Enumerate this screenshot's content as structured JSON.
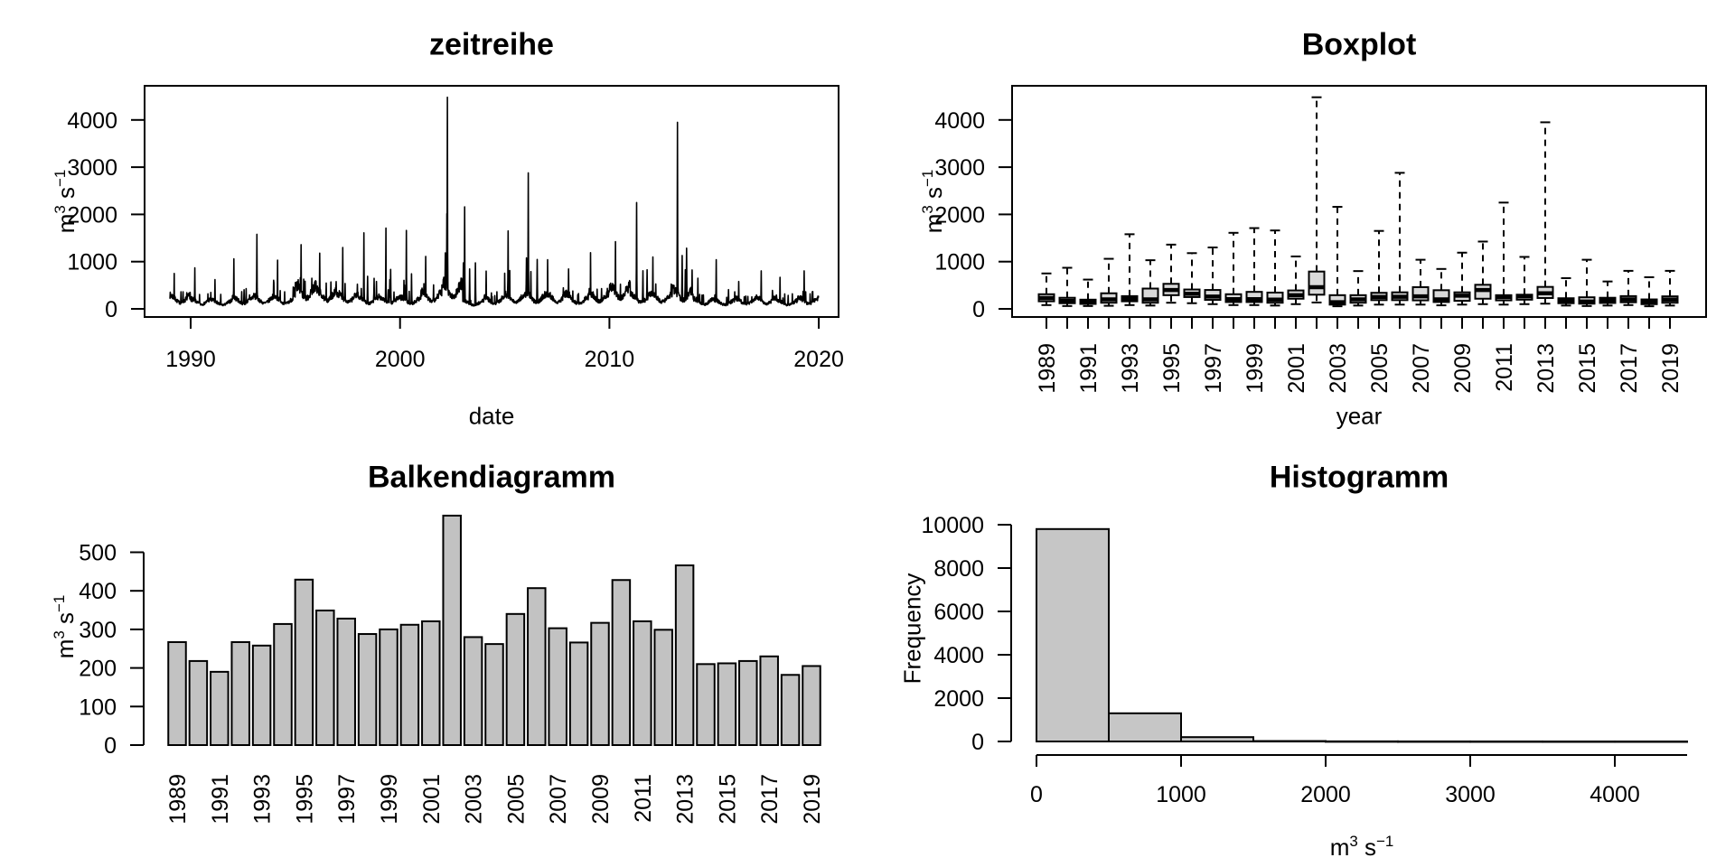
{
  "figure": {
    "background": "#ffffff",
    "axis_color": "#000000",
    "bar_fill": "#c2c2c2",
    "hist_fill": "#c6c6c6",
    "box_fill": "#d9d9d9"
  },
  "units": {
    "base1": "m",
    "sup1": "3",
    "base2": " s",
    "sup2": "−1"
  },
  "chart_data": [
    {
      "id": "timeseries",
      "type": "line",
      "title": "zeitreihe",
      "xlabel": "date",
      "ylabel": "m³ s⁻¹",
      "x_ticks": [
        1990,
        2000,
        2010,
        2020
      ],
      "y_ticks": [
        0,
        1000,
        2000,
        3000,
        4000
      ],
      "x_range": [
        1989,
        2020
      ],
      "ylim": [
        0,
        4725
      ],
      "years": [
        1989,
        1990,
        1991,
        1992,
        1993,
        1994,
        1995,
        1996,
        1997,
        1998,
        1999,
        2000,
        2001,
        2002,
        2003,
        2004,
        2005,
        2006,
        2007,
        2008,
        2009,
        2010,
        2011,
        2012,
        2013,
        2014,
        2015,
        2016,
        2017,
        2018,
        2019
      ],
      "annual_max": [
        750,
        870,
        620,
        1060,
        1580,
        1030,
        1360,
        1180,
        1300,
        1610,
        1710,
        1660,
        1110,
        4480,
        2160,
        800,
        1650,
        2880,
        1040,
        845,
        1190,
        1425,
        2250,
        1100,
        3950,
        650,
        1040,
        580,
        805,
        670,
        805
      ],
      "annual_median": [
        230,
        170,
        145,
        200,
        215,
        200,
        400,
        320,
        260,
        205,
        205,
        195,
        290,
        460,
        140,
        200,
        250,
        255,
        265,
        200,
        280,
        400,
        250,
        265,
        330,
        170,
        155,
        180,
        200,
        145,
        195
      ],
      "annual_q1": [
        160,
        120,
        105,
        130,
        160,
        130,
        290,
        250,
        190,
        145,
        145,
        130,
        215,
        300,
        90,
        130,
        185,
        185,
        180,
        145,
        170,
        215,
        180,
        195,
        230,
        120,
        110,
        125,
        140,
        100,
        130
      ],
      "baseline_min": 55
    },
    {
      "id": "boxplot",
      "type": "boxplot",
      "title": "Boxplot",
      "xlabel": "year",
      "ylabel": "m³ s⁻¹",
      "y_ticks": [
        0,
        1000,
        2000,
        3000,
        4000
      ],
      "label_every": 2,
      "years": [
        1989,
        1990,
        1991,
        1992,
        1993,
        1994,
        1995,
        1996,
        1997,
        1998,
        1999,
        2000,
        2001,
        2002,
        2003,
        2004,
        2005,
        2006,
        2007,
        2008,
        2009,
        2010,
        2011,
        2012,
        2013,
        2014,
        2015,
        2016,
        2017,
        2018,
        2019
      ],
      "lo": [
        80,
        60,
        60,
        65,
        80,
        70,
        130,
        120,
        100,
        80,
        80,
        70,
        100,
        135,
        55,
        70,
        90,
        90,
        90,
        75,
        90,
        100,
        90,
        100,
        110,
        70,
        60,
        70,
        80,
        55,
        70
      ],
      "q1": [
        160,
        120,
        105,
        130,
        160,
        130,
        290,
        250,
        190,
        145,
        145,
        130,
        215,
        300,
        90,
        130,
        185,
        185,
        180,
        145,
        170,
        215,
        180,
        195,
        230,
        120,
        110,
        125,
        140,
        100,
        130
      ],
      "med": [
        230,
        170,
        145,
        200,
        215,
        200,
        400,
        320,
        260,
        205,
        205,
        195,
        290,
        460,
        140,
        200,
        250,
        255,
        265,
        200,
        280,
        400,
        250,
        265,
        330,
        170,
        155,
        180,
        200,
        145,
        195
      ],
      "q3": [
        310,
        235,
        195,
        330,
        270,
        430,
        530,
        410,
        400,
        310,
        360,
        345,
        390,
        790,
        290,
        290,
        340,
        350,
        460,
        395,
        350,
        510,
        290,
        300,
        465,
        225,
        245,
        235,
        270,
        200,
        265
      ],
      "hi": [
        750,
        870,
        620,
        1060,
        1580,
        1030,
        1360,
        1180,
        1300,
        1610,
        1710,
        1660,
        1110,
        4480,
        2160,
        800,
        1650,
        2880,
        1040,
        845,
        1190,
        1425,
        2250,
        1100,
        3950,
        650,
        1040,
        580,
        805,
        670,
        805
      ]
    },
    {
      "id": "barchart",
      "type": "bar",
      "title": "Balkendiagramm",
      "xlabel": "",
      "ylabel": "m³ s⁻¹",
      "y_ticks": [
        0,
        100,
        200,
        300,
        400,
        500
      ],
      "label_every": 2,
      "categories": [
        1989,
        1990,
        1991,
        1992,
        1993,
        1994,
        1995,
        1996,
        1997,
        1998,
        1999,
        2000,
        2001,
        2002,
        2003,
        2004,
        2005,
        2006,
        2007,
        2008,
        2009,
        2010,
        2011,
        2012,
        2013,
        2014,
        2015,
        2016,
        2017,
        2018,
        2019
      ],
      "values": [
        267,
        218,
        190,
        267,
        258,
        314,
        429,
        349,
        328,
        288,
        300,
        312,
        321,
        595,
        280,
        262,
        340,
        407,
        303,
        266,
        317,
        428,
        321,
        299,
        466,
        210,
        212,
        218,
        230,
        182,
        205
      ]
    },
    {
      "id": "histogram",
      "type": "histogram",
      "title": "Histogramm",
      "xlabel": "m³ s⁻¹",
      "ylabel": "Frequency",
      "x_ticks": [
        0,
        1000,
        2000,
        3000,
        4000
      ],
      "y_ticks": [
        0,
        2000,
        4000,
        6000,
        8000,
        10000
      ],
      "bin_start": 0,
      "bin_width": 500,
      "axis_end": 4500,
      "counts": [
        9800,
        1300,
        200,
        20,
        6,
        3,
        2,
        1,
        1
      ]
    }
  ]
}
